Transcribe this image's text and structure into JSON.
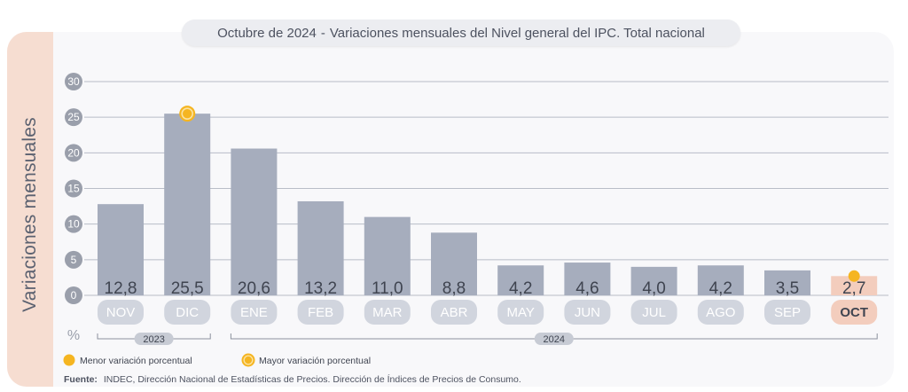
{
  "title": {
    "period": "Octubre de 2024",
    "separator": "-",
    "text": "Variaciones mensuales del Nivel general del IPC. Total nacional"
  },
  "chart_data": {
    "type": "bar",
    "ylabel": "Variaciones mensuales",
    "yunit": "%",
    "ylim": [
      0,
      30
    ],
    "yticks": [
      0,
      5,
      10,
      15,
      20,
      25,
      30
    ],
    "grid": true,
    "categories": [
      "NOV",
      "DIC",
      "ENE",
      "FEB",
      "MAR",
      "ABR",
      "MAY",
      "JUN",
      "JUL",
      "AGO",
      "SEP",
      "OCT"
    ],
    "values": [
      12.8,
      25.5,
      20.6,
      13.2,
      11.0,
      8.8,
      4.2,
      4.6,
      4.0,
      4.2,
      3.5,
      2.7
    ],
    "value_labels": [
      "12,8",
      "25,5",
      "20,6",
      "13,2",
      "11,0",
      "8,8",
      "4,2",
      "4,6",
      "4,0",
      "4,2",
      "3,5",
      "2,7"
    ],
    "years": [
      {
        "label": "2023",
        "from": 0,
        "to": 1
      },
      {
        "label": "2024",
        "from": 2,
        "to": 11
      }
    ],
    "highlight_index": 11,
    "min_marker_index": 11,
    "max_marker_index": 1,
    "legend": [
      {
        "label": "Menor variación porcentual",
        "marker": "min"
      },
      {
        "label": "Mayor variación porcentual",
        "marker": "max"
      }
    ],
    "legend_position": "bottom-left"
  },
  "source": {
    "prefix": "Fuente:",
    "text": "INDEC, Dirección Nacional de Estadísticas de Precios. Dirección de Índices de Precios de Consumo."
  },
  "colors": {
    "bar": "#a6adbd",
    "bar_highlight": "#f3cdbd",
    "category_pill": "#d1d5de",
    "category_text": "#ffffff",
    "category_text_highlight": "#3f4450",
    "tick_circle": "#9a9fab",
    "marker": "#f5b521",
    "ylabel_band": "#f6ddd1",
    "text": "#4d5260"
  }
}
